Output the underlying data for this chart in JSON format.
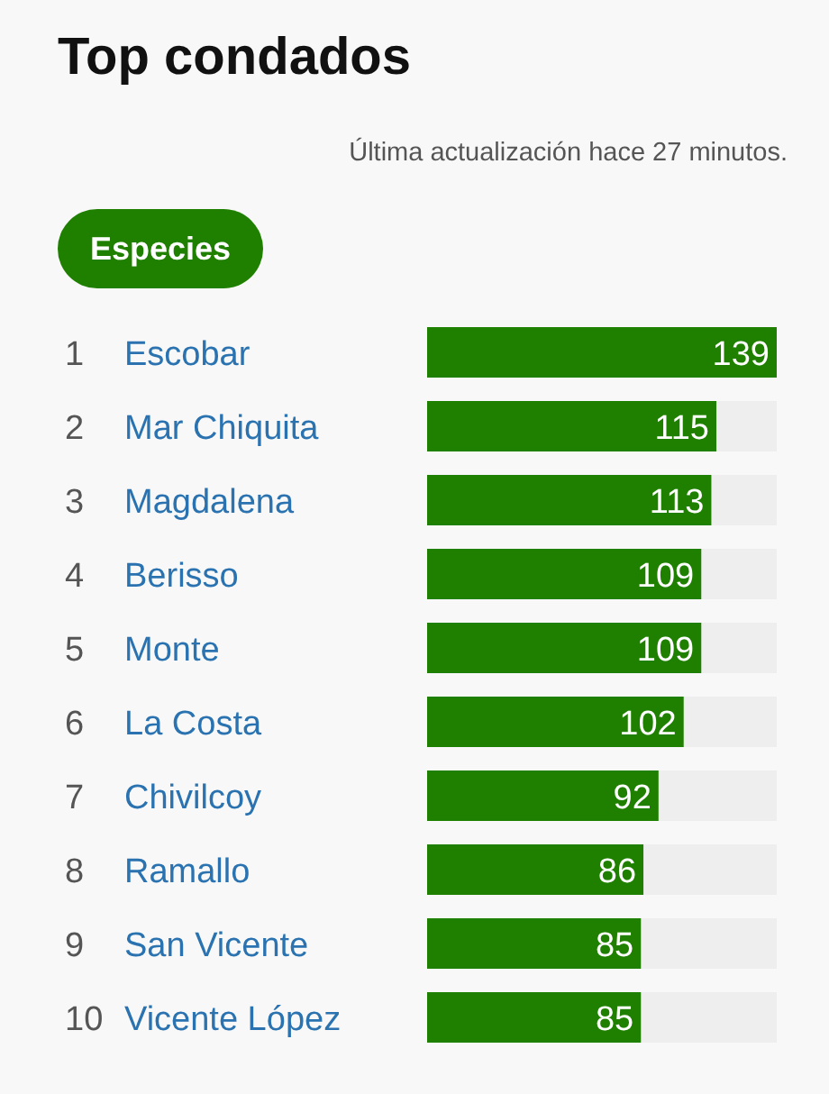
{
  "chart_data": {
    "type": "bar",
    "orientation": "horizontal",
    "title": "Top condados",
    "subtitle": "Última actualización hace 27 minutos.",
    "annotations": [
      "Especies"
    ],
    "categories": [
      "1 Escobar",
      "2 Mar Chiquita",
      "3 Magdalena",
      "4 Berisso",
      "5 Monte",
      "6 La Costa",
      "7 Chivilcoy",
      "8 Ramallo",
      "9 San Vicente",
      "10 Vicente López"
    ],
    "values": [
      139,
      115,
      113,
      109,
      109,
      102,
      92,
      86,
      85,
      85
    ],
    "color": "#1f8000",
    "xlim": [
      0,
      139
    ],
    "data_labels": true,
    "tick_labels": "y"
  }
}
